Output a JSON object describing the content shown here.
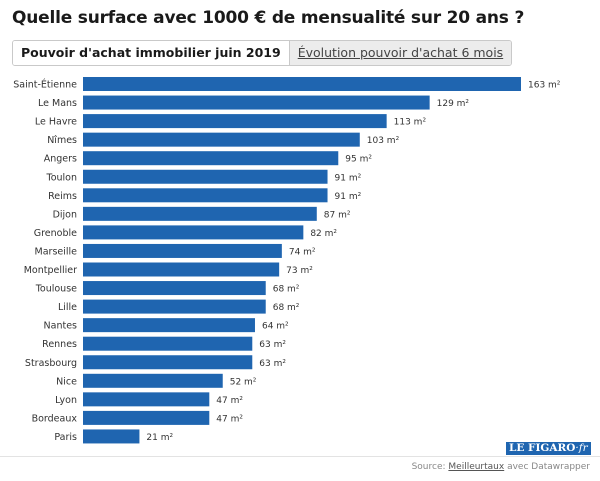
{
  "title": "Quelle surface avec 1000 € de mensualité sur 20 ans ?",
  "tabs": [
    {
      "label": "Pouvoir d'achat immobilier juin 2019",
      "active": true
    },
    {
      "label": "Évolution pouvoir d'achat 6 mois",
      "active": false
    }
  ],
  "chart_data": {
    "type": "bar",
    "orientation": "horizontal",
    "unit": "m²",
    "categories": [
      "Saint-Étienne",
      "Le Mans",
      "Le Havre",
      "Nîmes",
      "Angers",
      "Toulon",
      "Reims",
      "Dijon",
      "Grenoble",
      "Marseille",
      "Montpellier",
      "Toulouse",
      "Lille",
      "Nantes",
      "Rennes",
      "Strasbourg",
      "Nice",
      "Lyon",
      "Bordeaux",
      "Paris"
    ],
    "values": [
      163,
      129,
      113,
      103,
      95,
      91,
      91,
      87,
      82,
      74,
      73,
      68,
      68,
      64,
      63,
      63,
      52,
      47,
      47,
      21
    ],
    "value_labels": [
      "163 m²",
      "129 m²",
      "113 m²",
      "103 m²",
      "95 m²",
      "91 m²",
      "91 m²",
      "87 m²",
      "82 m²",
      "74 m²",
      "73 m²",
      "68 m²",
      "68 m²",
      "64 m²",
      "63 m²",
      "63 m²",
      "52 m²",
      "47 m²",
      "47 m²",
      "21 m²"
    ],
    "xlim": [
      0,
      163
    ],
    "bar_color": "#1f65b0"
  },
  "logo": {
    "main": "LE FIGARO",
    "suffix": "·fr"
  },
  "source": {
    "prefix": "Source: ",
    "link": "Meilleurtaux",
    "suffix": " avec Datawrapper"
  }
}
